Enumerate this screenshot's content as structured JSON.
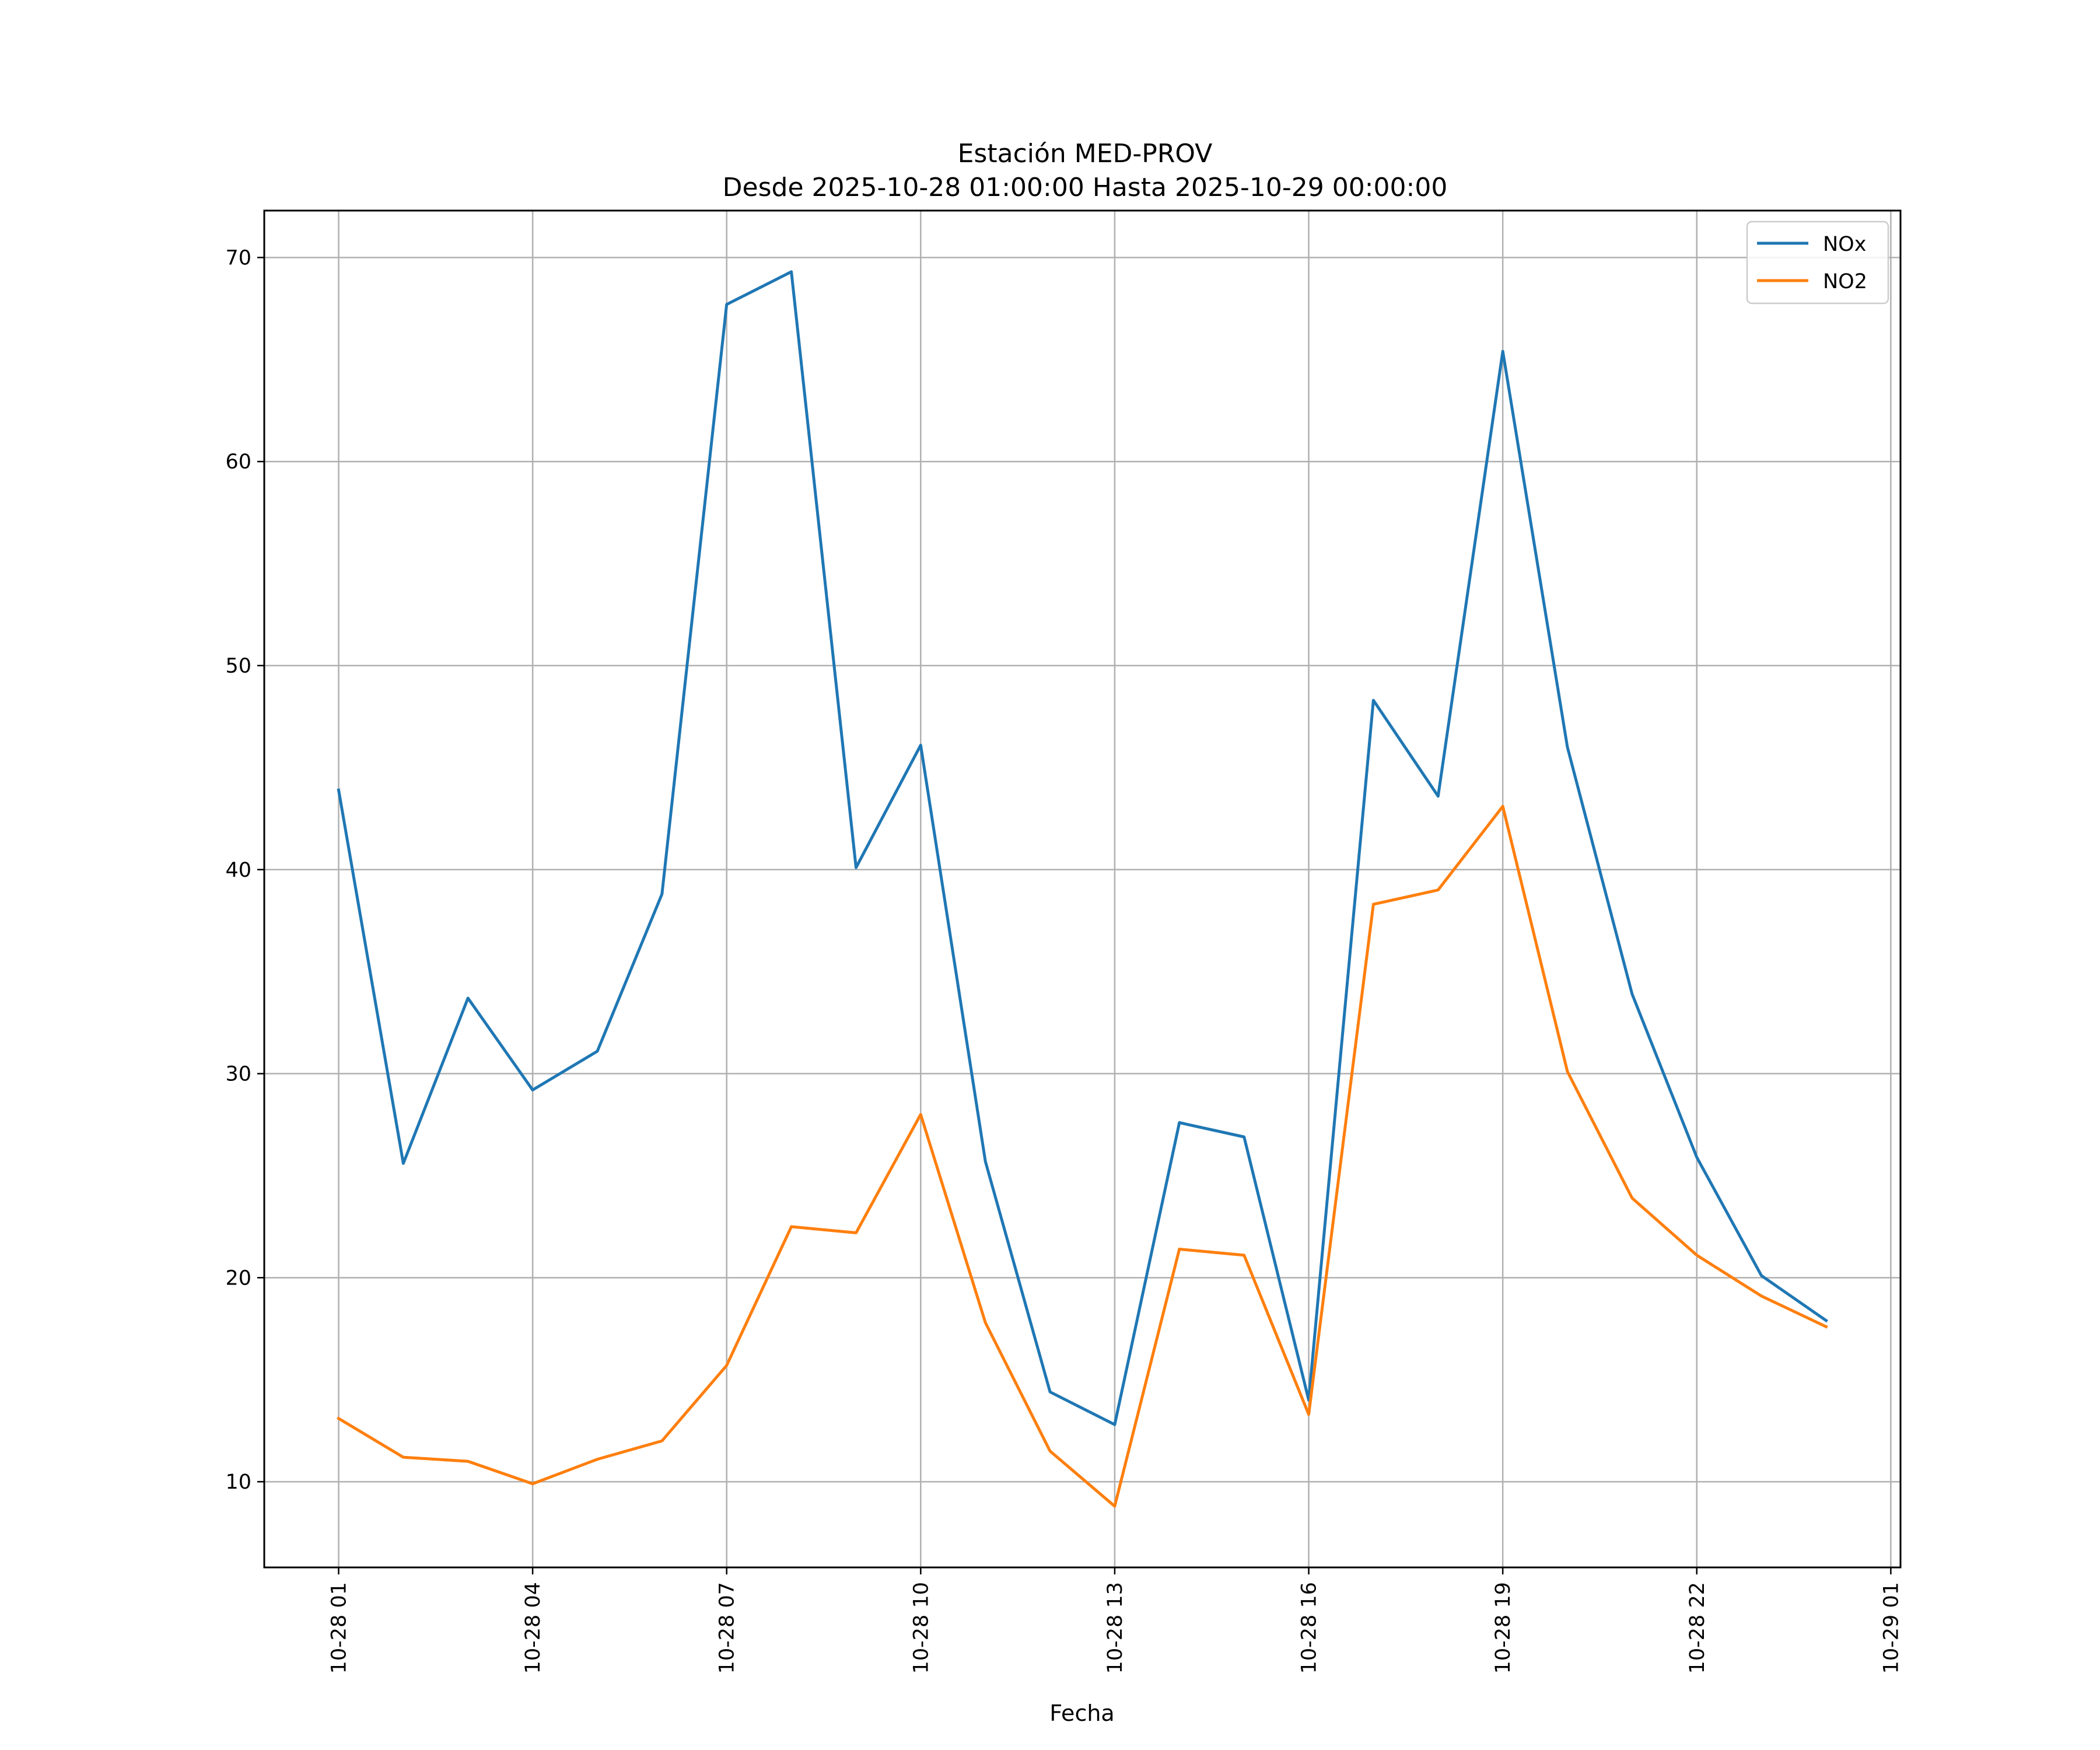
{
  "chart_data": {
    "type": "line",
    "title": "Estación MED-PROV",
    "subtitle": "Desde 2025-10-28 01:00:00 Hasta 2025-10-29 00:00:00",
    "xlabel": "Fecha",
    "ylabel": "",
    "x": [
      "2025-10-28 01:00",
      "2025-10-28 02:00",
      "2025-10-28 03:00",
      "2025-10-28 04:00",
      "2025-10-28 05:00",
      "2025-10-28 06:00",
      "2025-10-28 07:00",
      "2025-10-28 08:00",
      "2025-10-28 09:00",
      "2025-10-28 10:00",
      "2025-10-28 11:00",
      "2025-10-28 12:00",
      "2025-10-28 13:00",
      "2025-10-28 14:00",
      "2025-10-28 15:00",
      "2025-10-28 16:00",
      "2025-10-28 17:00",
      "2025-10-28 18:00",
      "2025-10-28 19:00",
      "2025-10-28 20:00",
      "2025-10-28 21:00",
      "2025-10-28 22:00",
      "2025-10-28 23:00",
      "2025-10-29 00:00"
    ],
    "series": [
      {
        "name": "NOx",
        "color": "#1f77b4",
        "values": [
          43.9,
          25.6,
          33.7,
          29.2,
          31.1,
          38.8,
          67.7,
          69.3,
          40.1,
          46.1,
          25.7,
          14.4,
          12.8,
          27.6,
          26.9,
          14.0,
          48.3,
          43.6,
          65.4,
          46.0,
          33.9,
          25.9,
          20.1,
          17.9
        ]
      },
      {
        "name": "NO2",
        "color": "#ff7f0e",
        "values": [
          13.1,
          11.2,
          11.0,
          9.9,
          11.1,
          12.0,
          15.7,
          22.5,
          22.2,
          28.0,
          17.8,
          11.5,
          8.8,
          21.4,
          21.1,
          13.3,
          38.3,
          39.0,
          43.1,
          30.1,
          23.9,
          21.1,
          19.1,
          17.6
        ]
      }
    ],
    "xticks": [
      "10-28 01",
      "10-28 04",
      "10-28 07",
      "10-28 10",
      "10-28 13",
      "10-28 16",
      "10-28 19",
      "10-28 22",
      "10-29 01"
    ],
    "xtick_hours": [
      0,
      3,
      6,
      9,
      12,
      15,
      18,
      21,
      24
    ],
    "xlim_hours": [
      -1.15,
      24.15
    ],
    "yticks": [
      10,
      20,
      30,
      40,
      50,
      60,
      70
    ],
    "ylim": [
      5.8,
      72.3
    ],
    "grid": true,
    "legend_position": "top-right"
  }
}
